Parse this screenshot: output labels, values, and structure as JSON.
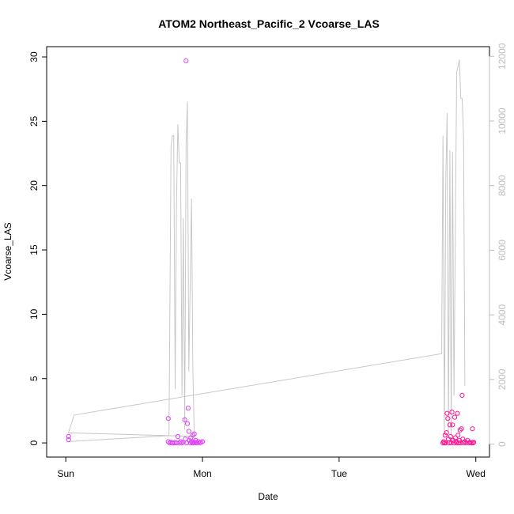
{
  "chart_data": {
    "type": "scatter",
    "title": "ATOM2 Northeast_Pacific_2 Vcoarse_LAS",
    "xlabel": "Date",
    "ylabel": "Vcoarse_LAS",
    "x_ticks": [
      "Sun",
      "Mon",
      "Tue",
      "Wed"
    ],
    "x_tick_values": [
      0,
      1,
      2,
      3
    ],
    "xlim": [
      -0.14,
      3.1
    ],
    "ylim": [
      -1.1,
      30.8
    ],
    "y_ticks": [
      0,
      5,
      10,
      15,
      20,
      25,
      30
    ],
    "y2lim": [
      -400,
      12300
    ],
    "y2_ticks": [
      0,
      2000,
      4000,
      6000,
      8000,
      10000,
      12000
    ],
    "colors": {
      "scatter_early": "#e040fb",
      "scatter_late": "#ff1493",
      "line": "#c8c8c8"
    },
    "series": [
      {
        "type": "scatter",
        "points": [
          [
            0.02,
            0.5
          ],
          [
            0.02,
            0.25
          ],
          [
            0.75,
            1.9
          ],
          [
            0.75,
            0.1
          ],
          [
            0.76,
            0.0
          ],
          [
            0.77,
            0.05
          ],
          [
            0.78,
            0.0
          ],
          [
            0.79,
            0.0
          ],
          [
            0.8,
            0.02
          ],
          [
            0.81,
            0.0
          ],
          [
            0.82,
            0.5
          ],
          [
            0.83,
            0.0
          ],
          [
            0.84,
            0.1
          ],
          [
            0.85,
            0.0
          ],
          [
            0.86,
            0.05
          ],
          [
            0.87,
            1.8
          ],
          [
            0.875,
            0.3
          ],
          [
            0.88,
            29.7
          ],
          [
            0.885,
            0.0
          ],
          [
            0.89,
            1.5
          ],
          [
            0.895,
            2.7
          ],
          [
            0.9,
            0.9
          ],
          [
            0.905,
            0.2
          ],
          [
            0.91,
            0.0
          ],
          [
            0.915,
            0.4
          ],
          [
            0.92,
            0.1
          ],
          [
            0.925,
            0.0
          ],
          [
            0.93,
            0.6
          ],
          [
            0.935,
            0.0
          ],
          [
            0.94,
            0.7
          ],
          [
            0.945,
            0.05
          ],
          [
            0.95,
            0.2
          ],
          [
            0.955,
            0.0
          ],
          [
            0.96,
            0.0
          ],
          [
            0.97,
            0.1
          ],
          [
            0.98,
            0.0
          ],
          [
            0.99,
            0.05
          ],
          [
            1.0,
            0.1
          ],
          [
            2.76,
            0.0
          ],
          [
            2.765,
            0.1
          ],
          [
            2.77,
            0.0
          ],
          [
            2.775,
            0.6
          ],
          [
            2.78,
            0.0
          ],
          [
            2.785,
            0.8
          ],
          [
            2.79,
            2.3
          ],
          [
            2.795,
            1.9
          ],
          [
            2.8,
            0.3
          ],
          [
            2.805,
            0.0
          ],
          [
            2.81,
            1.4
          ],
          [
            2.815,
            0.5
          ],
          [
            2.82,
            0.0
          ],
          [
            2.825,
            2.4
          ],
          [
            2.83,
            1.4
          ],
          [
            2.835,
            0.2
          ],
          [
            2.84,
            0.0
          ],
          [
            2.845,
            2.0
          ],
          [
            2.85,
            0.4
          ],
          [
            2.855,
            0.1
          ],
          [
            2.86,
            0.0
          ],
          [
            2.865,
            2.3
          ],
          [
            2.87,
            0.6
          ],
          [
            2.875,
            0.0
          ],
          [
            2.88,
            0.2
          ],
          [
            2.885,
            1.0
          ],
          [
            2.89,
            0.0
          ],
          [
            2.895,
            1.1
          ],
          [
            2.9,
            3.7
          ],
          [
            2.905,
            0.3
          ],
          [
            2.91,
            0.0
          ],
          [
            2.92,
            0.1
          ],
          [
            2.93,
            0.0
          ],
          [
            2.94,
            0.2
          ],
          [
            2.95,
            0.0
          ],
          [
            2.96,
            0.05
          ],
          [
            2.97,
            0.0
          ],
          [
            2.975,
            1.1
          ],
          [
            2.98,
            0.0
          ],
          [
            2.985,
            0.05
          ]
        ]
      },
      {
        "type": "line",
        "axis": "right",
        "points": [
          [
            0.02,
            80
          ],
          [
            0.75,
            260
          ],
          [
            0.755,
            280
          ],
          [
            0.77,
            9200
          ],
          [
            0.78,
            9550
          ],
          [
            0.79,
            9550
          ],
          [
            0.8,
            1700
          ],
          [
            0.81,
            7400
          ],
          [
            0.82,
            9900
          ],
          [
            0.83,
            8700
          ],
          [
            0.84,
            8700
          ],
          [
            0.85,
            1500
          ],
          [
            0.86,
            7000
          ],
          [
            0.87,
            450
          ],
          [
            0.88,
            9300
          ],
          [
            0.89,
            10600
          ],
          [
            0.9,
            2250
          ],
          [
            0.92,
            7600
          ],
          [
            0.93,
            2300
          ],
          [
            0.94,
            240
          ],
          [
            0.02,
            350
          ],
          [
            0.06,
            900
          ],
          [
            2.75,
            2800
          ],
          [
            2.76,
            9550
          ],
          [
            2.77,
            200
          ],
          [
            2.78,
            8100
          ],
          [
            2.79,
            10250
          ],
          [
            2.8,
            350
          ],
          [
            2.81,
            9100
          ],
          [
            2.82,
            250
          ],
          [
            2.83,
            9050
          ],
          [
            2.84,
            1500
          ],
          [
            2.86,
            11500
          ],
          [
            2.88,
            11900
          ],
          [
            2.89,
            10700
          ],
          [
            2.9,
            10700
          ],
          [
            2.91,
            9500
          ],
          [
            2.92,
            1800
          ]
        ]
      }
    ]
  }
}
